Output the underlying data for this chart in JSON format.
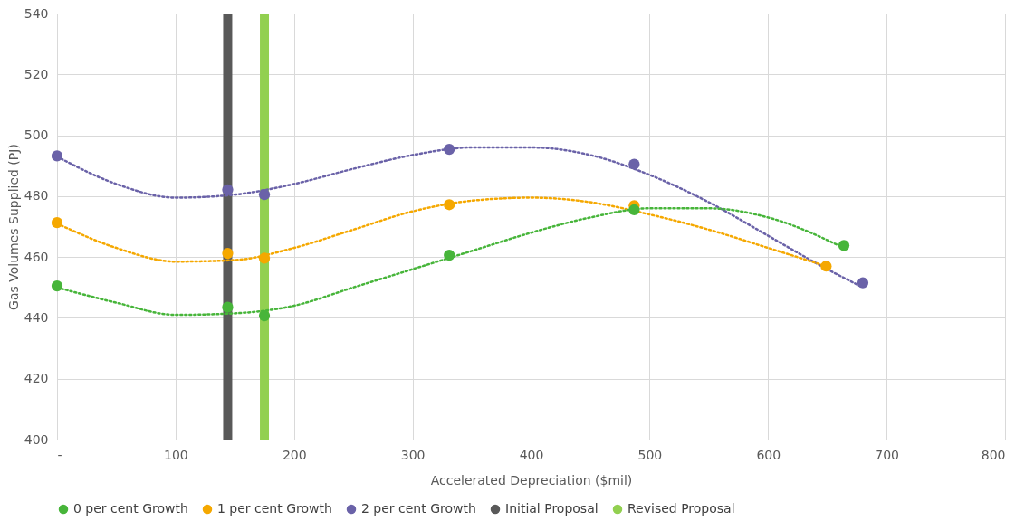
{
  "chart_data": {
    "type": "scatter",
    "xlabel": "Accelerated Depreciation ($mil)",
    "ylabel": "Gas Volumes Supplied (PJ)",
    "xlim": [
      0,
      800
    ],
    "xticks": [
      {
        "value": 0,
        "label": "-"
      },
      100,
      200,
      300,
      400,
      500,
      600,
      700,
      800
    ],
    "ylim": [
      400,
      540
    ],
    "yticks": [
      400,
      420,
      440,
      460,
      480,
      500,
      520,
      540
    ],
    "grid": true,
    "legend": "bottom",
    "marker": "circle",
    "series": [
      {
        "name": "0 per cent Growth",
        "color": "#47b53a",
        "x": [
          0,
          144,
          175,
          331,
          487,
          664
        ],
        "values": [
          450.5,
          443.5,
          440.7,
          460.6,
          475.5,
          463.8
        ]
      },
      {
        "name": "1 per cent Growth",
        "color": "#f5a800",
        "x": [
          0,
          144,
          175,
          331,
          487,
          649
        ],
        "values": [
          471.3,
          461.2,
          459.6,
          477.2,
          476.9,
          457
        ]
      },
      {
        "name": "2 per cent Growth",
        "color": "#6a62a8",
        "x": [
          0,
          144,
          175,
          331,
          487,
          680
        ],
        "values": [
          493.2,
          482.1,
          480.5,
          495.4,
          490.5,
          451.5
        ]
      },
      {
        "type": "line",
        "color": "#47b53a",
        "line_style": "dotted",
        "marker": "none",
        "x": [
          0,
          50,
          100,
          150,
          200,
          250,
          300,
          350,
          400,
          450,
          500,
          550,
          600,
          664
        ],
        "values": [
          450,
          445,
          441,
          441.5,
          444,
          450,
          456,
          462,
          468,
          473,
          476,
          476,
          473,
          463
        ]
      },
      {
        "type": "line",
        "color": "#f5a800",
        "line_style": "dotted",
        "marker": "none",
        "x": [
          0,
          50,
          100,
          150,
          200,
          250,
          300,
          350,
          400,
          450,
          500,
          550,
          600,
          649
        ],
        "values": [
          471,
          463,
          458.5,
          459,
          463,
          469,
          475,
          478.5,
          479.5,
          478,
          474,
          469,
          463,
          457
        ]
      },
      {
        "type": "line",
        "color": "#6a62a8",
        "line_style": "dotted",
        "marker": "none",
        "x": [
          0,
          50,
          100,
          150,
          200,
          250,
          300,
          350,
          400,
          450,
          500,
          550,
          600,
          650,
          680
        ],
        "values": [
          493,
          484,
          479.5,
          480.5,
          484,
          489,
          493.5,
          496,
          496,
          493.5,
          487,
          478,
          467,
          456,
          450
        ]
      }
    ],
    "ref_lines": [
      {
        "axis": "x",
        "value": 144,
        "label": "Initial Proposal",
        "color": "#595959"
      },
      {
        "axis": "x",
        "value": 175,
        "label": "Revised Proposal",
        "color": "#92d050"
      }
    ]
  }
}
